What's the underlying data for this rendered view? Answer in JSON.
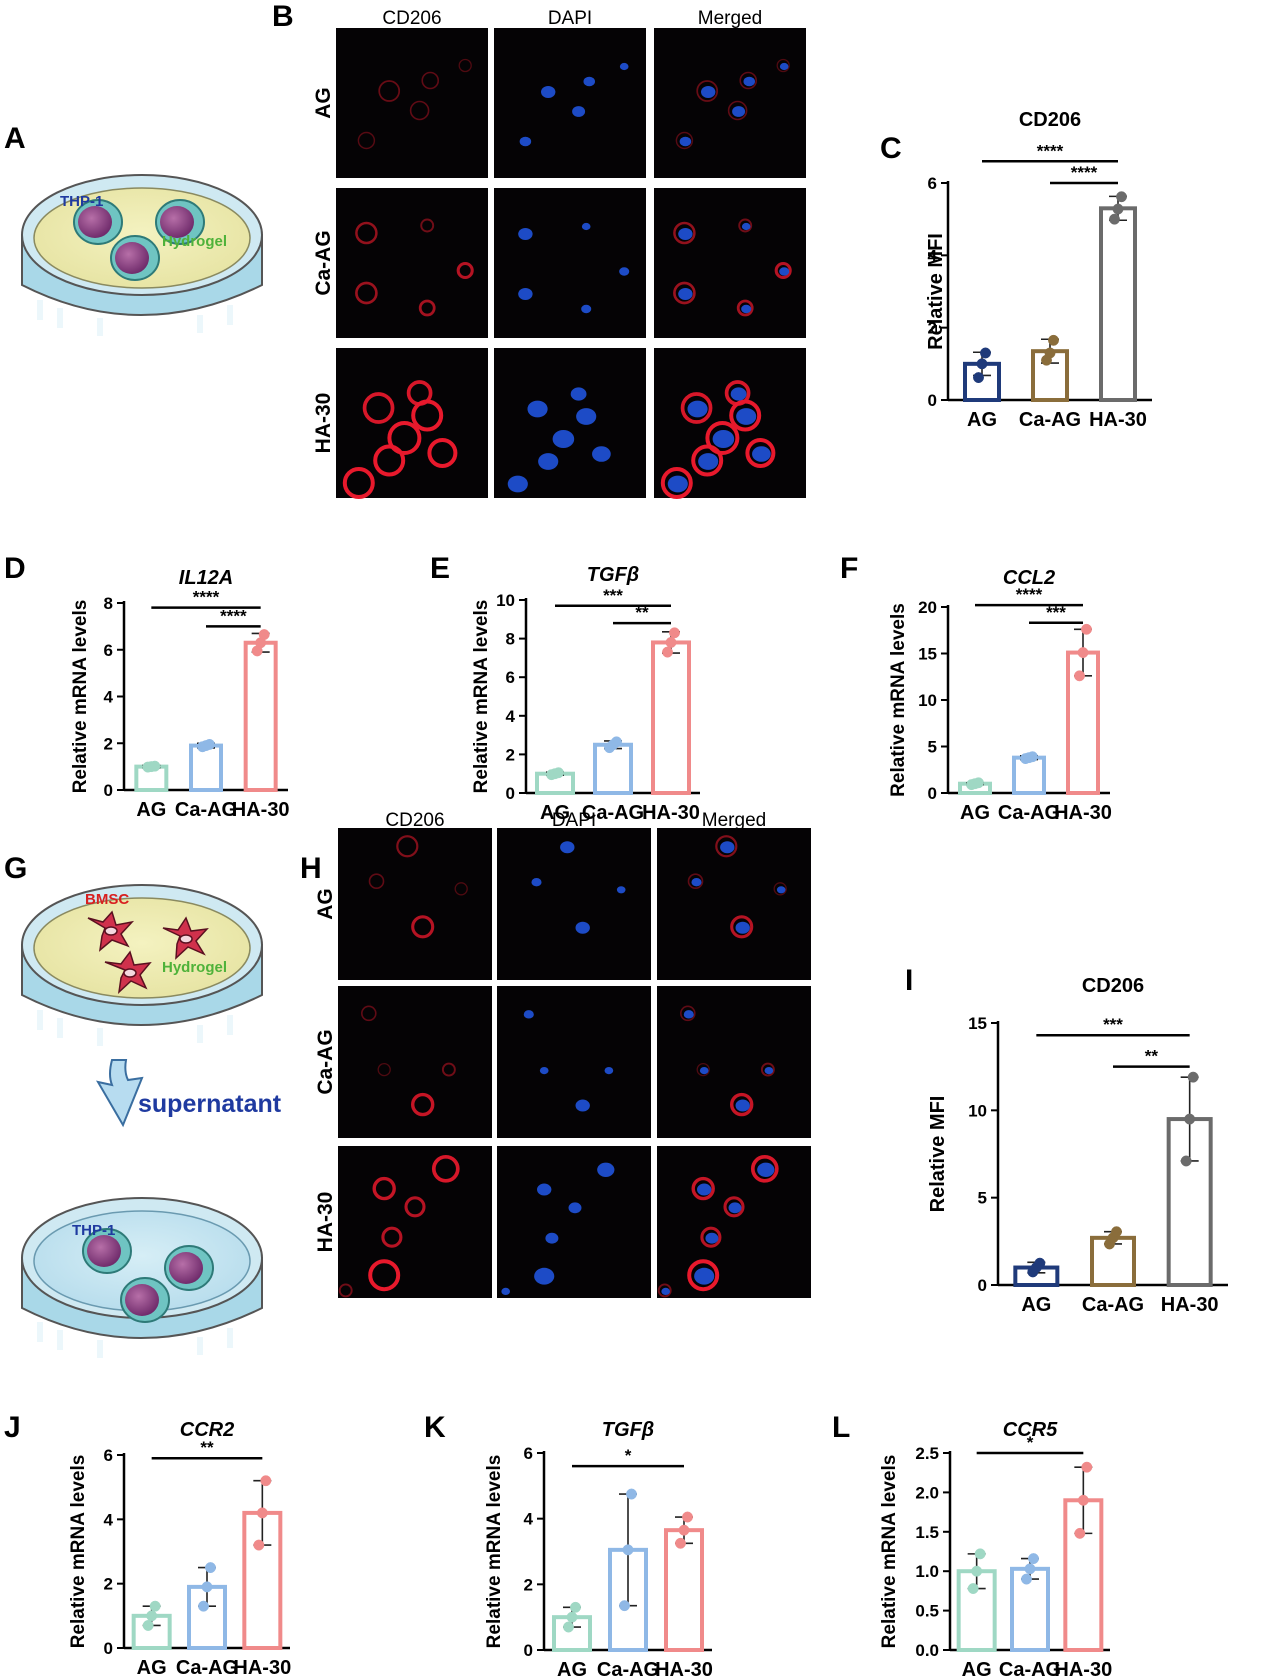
{
  "panel_letters": [
    "A",
    "B",
    "C",
    "D",
    "E",
    "F",
    "G",
    "H",
    "I",
    "J",
    "K",
    "L"
  ],
  "schematic_top": {
    "cell_label": "THP-1",
    "gel_label": "Hydrogel"
  },
  "schematic_bottom": {
    "top_cell_label": "BMSC",
    "gel_label": "Hydrogel",
    "arrow_label": "supernatant",
    "bottom_cell_label": "THP-1"
  },
  "micrograph_columns": [
    "CD206",
    "DAPI",
    "Merged"
  ],
  "micrograph_rows": [
    "AG",
    "Ca-AG",
    "HA-30"
  ],
  "colors": {
    "C_AG": "#1f3a7a",
    "C_CaAG": "#8a6d3b",
    "C_HA30": "#6b6b6b",
    "mRNA_AG": "#9fd8c4",
    "mRNA_CaAG": "#8fb8e6",
    "mRNA_HA30": "#f08a8a",
    "CD206_red": "#e8192c",
    "DAPI_blue": "#1f4fd1"
  },
  "chart_data": [
    {
      "id": "C",
      "type": "bar",
      "title": "CD206",
      "title_italic": false,
      "ylabel": "Relative MFI",
      "categories": [
        "AG",
        "Ca-AG",
        "HA-30"
      ],
      "values": [
        1.0,
        1.35,
        5.3
      ],
      "errors": [
        0.32,
        0.33,
        0.33
      ],
      "points": [
        [
          0.62,
          1.0,
          1.3
        ],
        [
          1.1,
          1.3,
          1.65
        ],
        [
          5.0,
          5.28,
          5.62
        ]
      ],
      "ylim": [
        0,
        6
      ],
      "yticks": [
        0,
        2,
        4,
        6
      ],
      "significance": [
        {
          "from": 0,
          "to": 2,
          "label": "****",
          "y": 6.6
        },
        {
          "from": 1,
          "to": 2,
          "label": "****",
          "y": 6.0
        }
      ],
      "palette": "C"
    },
    {
      "id": "D",
      "type": "bar",
      "title": "IL12A",
      "title_italic": true,
      "ylabel": "Relative mRNA levels",
      "categories": [
        "AG",
        "Ca-AG",
        "HA-30"
      ],
      "values": [
        1.0,
        1.9,
        6.3
      ],
      "errors": [
        0.05,
        0.1,
        0.4
      ],
      "points": [
        [
          0.98,
          1.0,
          1.02
        ],
        [
          1.85,
          1.9,
          1.95
        ],
        [
          5.95,
          6.3,
          6.65
        ]
      ],
      "ylim": [
        0,
        8
      ],
      "yticks": [
        0,
        2,
        4,
        6,
        8
      ],
      "significance": [
        {
          "from": 0,
          "to": 2,
          "label": "****",
          "y": 7.8
        },
        {
          "from": 1,
          "to": 2,
          "label": "****",
          "y": 7.0
        }
      ],
      "palette": "mRNA"
    },
    {
      "id": "E",
      "type": "bar",
      "title": "TGFβ",
      "title_italic": true,
      "ylabel": "Relative mRNA levels",
      "categories": [
        "AG",
        "Ca-AG",
        "HA-30"
      ],
      "values": [
        1.0,
        2.5,
        7.8
      ],
      "errors": [
        0.08,
        0.2,
        0.55
      ],
      "points": [
        [
          0.95,
          1.0,
          1.05
        ],
        [
          2.35,
          2.5,
          2.65
        ],
        [
          7.3,
          7.8,
          8.3
        ]
      ],
      "ylim": [
        0,
        10
      ],
      "yticks": [
        0,
        2,
        4,
        6,
        8,
        10
      ],
      "significance": [
        {
          "from": 0,
          "to": 2,
          "label": "***",
          "y": 9.7
        },
        {
          "from": 1,
          "to": 2,
          "label": "**",
          "y": 8.8
        }
      ],
      "palette": "mRNA"
    },
    {
      "id": "F",
      "type": "bar",
      "title": "CCL2",
      "title_italic": true,
      "ylabel": "Relative mRNA levels",
      "categories": [
        "AG",
        "Ca-AG",
        "HA-30"
      ],
      "values": [
        1.0,
        3.8,
        15.1
      ],
      "errors": [
        0.1,
        0.2,
        2.5
      ],
      "points": [
        [
          0.9,
          1.0,
          1.1
        ],
        [
          3.7,
          3.8,
          3.9
        ],
        [
          12.6,
          15.1,
          17.6
        ]
      ],
      "ylim": [
        0,
        20
      ],
      "yticks": [
        0,
        5,
        10,
        15,
        20
      ],
      "significance": [
        {
          "from": 0,
          "to": 2,
          "label": "****",
          "y": 20.2
        },
        {
          "from": 1,
          "to": 2,
          "label": "***",
          "y": 18.3
        }
      ],
      "palette": "mRNA"
    },
    {
      "id": "I",
      "type": "bar",
      "title": "CD206",
      "title_italic": false,
      "ylabel": "Relative MFI",
      "categories": [
        "AG",
        "Ca-AG",
        "HA-30"
      ],
      "values": [
        1.0,
        2.7,
        9.5
      ],
      "errors": [
        0.3,
        0.35,
        2.4
      ],
      "points": [
        [
          0.75,
          1.0,
          1.25
        ],
        [
          2.35,
          2.7,
          3.05
        ],
        [
          7.1,
          9.5,
          11.9
        ]
      ],
      "ylim": [
        0,
        15
      ],
      "yticks": [
        0,
        5,
        10,
        15
      ],
      "significance": [
        {
          "from": 0,
          "to": 2,
          "label": "***",
          "y": 14.3
        },
        {
          "from": 1,
          "to": 2,
          "label": "**",
          "y": 12.5
        }
      ],
      "palette": "C"
    },
    {
      "id": "J",
      "type": "bar",
      "title": "CCR2",
      "title_italic": true,
      "ylabel": "Relative mRNA levels",
      "categories": [
        "AG",
        "Ca-AG",
        "HA-30"
      ],
      "values": [
        1.0,
        1.9,
        4.2
      ],
      "errors": [
        0.3,
        0.6,
        1.0
      ],
      "points": [
        [
          0.7,
          1.0,
          1.3
        ],
        [
          1.3,
          1.9,
          2.5
        ],
        [
          3.2,
          4.2,
          5.2
        ]
      ],
      "ylim": [
        0,
        6
      ],
      "yticks": [
        0,
        2,
        4,
        6
      ],
      "significance": [
        {
          "from": 0,
          "to": 2,
          "label": "**",
          "y": 5.9
        }
      ],
      "palette": "mRNA"
    },
    {
      "id": "K",
      "type": "bar",
      "title": "TGFβ",
      "title_italic": true,
      "ylabel": "Relative mRNA levels",
      "categories": [
        "AG",
        "Ca-AG",
        "HA-30"
      ],
      "values": [
        1.0,
        3.05,
        3.65
      ],
      "errors": [
        0.3,
        1.7,
        0.4
      ],
      "points": [
        [
          0.7,
          1.0,
          1.3
        ],
        [
          1.35,
          3.05,
          4.75
        ],
        [
          3.25,
          3.65,
          4.05
        ]
      ],
      "ylim": [
        0,
        6
      ],
      "yticks": [
        0,
        2,
        4,
        6
      ],
      "significance": [
        {
          "from": 0,
          "to": 2,
          "label": "*",
          "y": 5.6
        }
      ],
      "palette": "mRNA"
    },
    {
      "id": "L",
      "type": "bar",
      "title": "CCR5",
      "title_italic": true,
      "ylabel": "Relative mRNA levels",
      "categories": [
        "AG",
        "Ca-AG",
        "HA-30"
      ],
      "values": [
        1.0,
        1.03,
        1.9
      ],
      "errors": [
        0.22,
        0.13,
        0.42
      ],
      "points": [
        [
          0.78,
          1.0,
          1.22
        ],
        [
          0.9,
          1.03,
          1.16
        ],
        [
          1.48,
          1.9,
          2.32
        ]
      ],
      "ylim": [
        0,
        2.5
      ],
      "yticks": [
        0.0,
        0.5,
        1.0,
        1.5,
        2.0,
        2.5
      ],
      "ytick_decimals": 1,
      "significance": [
        {
          "from": 0,
          "to": 2,
          "label": "*",
          "y": 2.5
        }
      ],
      "palette": "mRNA"
    }
  ]
}
